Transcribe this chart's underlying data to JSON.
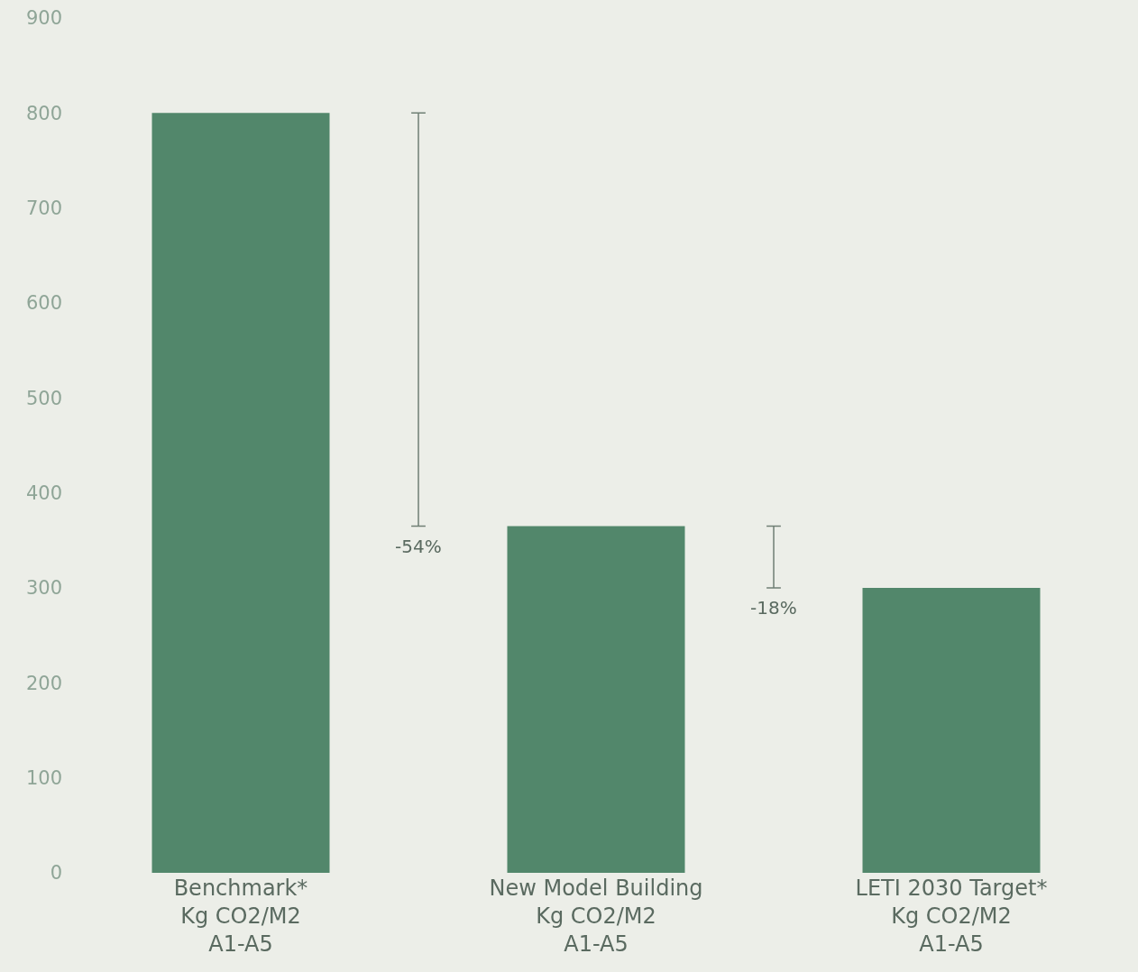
{
  "chart_data": {
    "type": "bar",
    "categories": [
      "Benchmark*\nKg CO2/M2\nA1-A5",
      "New Model Building\nKg CO2/M2\nA1-A5",
      "LETI 2030 Target*\nKg CO2/M2\nA1-A5"
    ],
    "values": [
      800,
      365,
      300
    ],
    "color": "#52876b",
    "ylim": [
      0,
      900
    ],
    "yticks": [
      0,
      100,
      200,
      300,
      400,
      500,
      600,
      700,
      800,
      900
    ],
    "annotations": [
      "-54%",
      "-18%"
    ],
    "grid": false,
    "legend": false
  }
}
